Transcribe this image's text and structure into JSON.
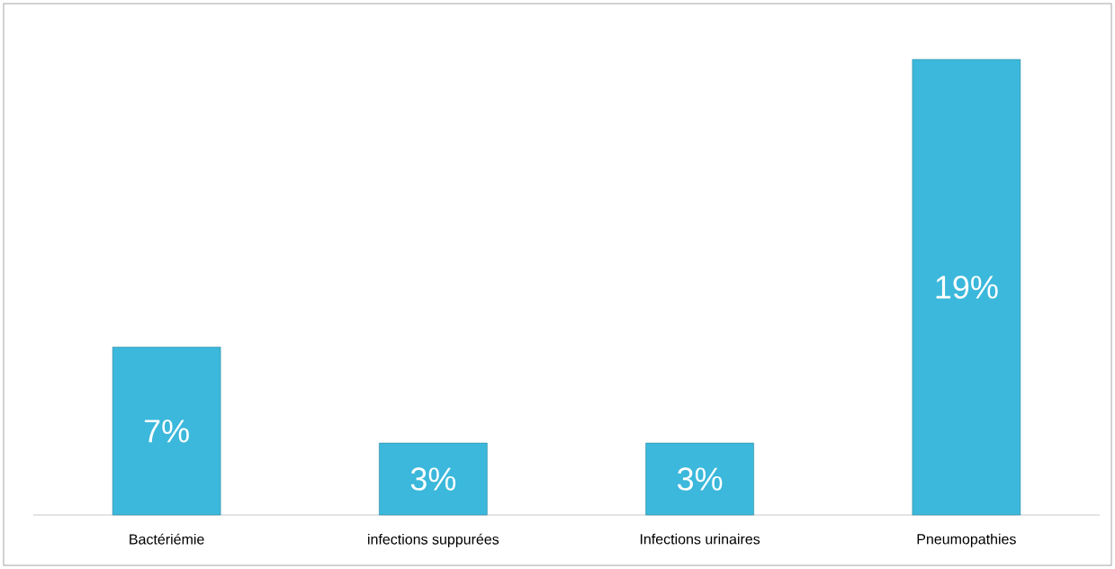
{
  "chart_data": {
    "type": "bar",
    "categories": [
      "Bactériémie",
      "infections suppurées",
      "Infections urinaires",
      "Pneumopathies"
    ],
    "values": [
      7,
      3,
      3,
      19
    ],
    "color": "#3bb8db",
    "value_labels": [
      "7%",
      "3%",
      "3%",
      "19%"
    ]
  }
}
